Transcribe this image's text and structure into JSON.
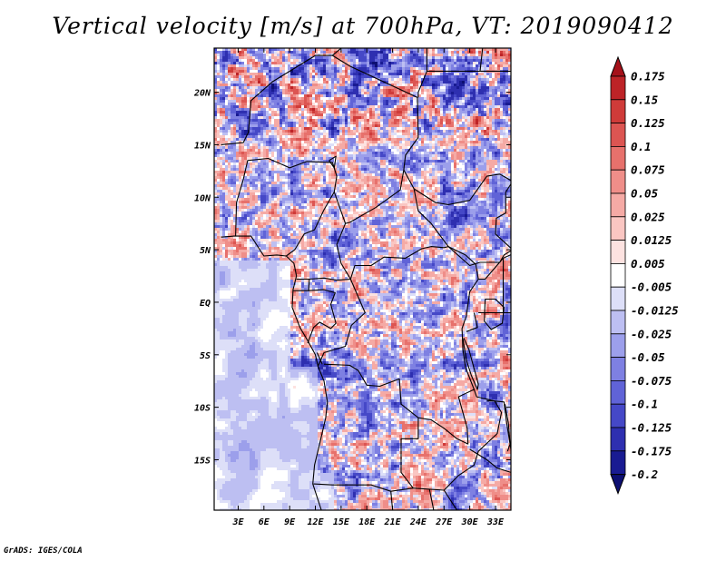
{
  "title": "Vertical velocity [m/s] at 700hPa, VT: 2019090412",
  "credit": "GrADS: IGES/COLA",
  "chart_data": {
    "type": "heatmap",
    "title": "Vertical velocity [m/s] at 700hPa, VT: 2019090412",
    "variable": "Vertical velocity",
    "units": "m/s",
    "level": "700hPa",
    "valid_time": "2019090412",
    "x_ticks": [
      "3E",
      "6E",
      "9E",
      "12E",
      "15E",
      "18E",
      "21E",
      "24E",
      "27E",
      "30E",
      "33E"
    ],
    "x_tick_values": [
      3,
      6,
      9,
      12,
      15,
      18,
      21,
      24,
      27,
      30,
      33
    ],
    "y_ticks": [
      "20N",
      "15N",
      "10N",
      "5N",
      "EQ",
      "5S",
      "10S",
      "15S"
    ],
    "y_tick_values": [
      20,
      15,
      10,
      5,
      0,
      -5,
      -10,
      -15
    ],
    "xlim": [
      0.2,
      34.8
    ],
    "ylim": [
      -19.8,
      24.2
    ],
    "colorbar": {
      "levels": [
        "0.175",
        "0.15",
        "0.125",
        "0.1",
        "0.075",
        "0.05",
        "0.025",
        "0.0125",
        "0.005",
        "-0.005",
        "-0.0125",
        "-0.025",
        "-0.05",
        "-0.075",
        "-0.1",
        "-0.125",
        "-0.175",
        "-0.2"
      ],
      "colors": [
        "#a5111a",
        "#bd2327",
        "#cf3b39",
        "#dc5552",
        "#e7716c",
        "#ef8e89",
        "#f5aaa5",
        "#fac6c2",
        "#fde2e0",
        "#ffffff",
        "#dddff8",
        "#bdbff2",
        "#9c9feb",
        "#7e80e2",
        "#6063d7",
        "#4548c7",
        "#2e2fb0",
        "#191b92",
        "#0d0f72"
      ]
    }
  }
}
